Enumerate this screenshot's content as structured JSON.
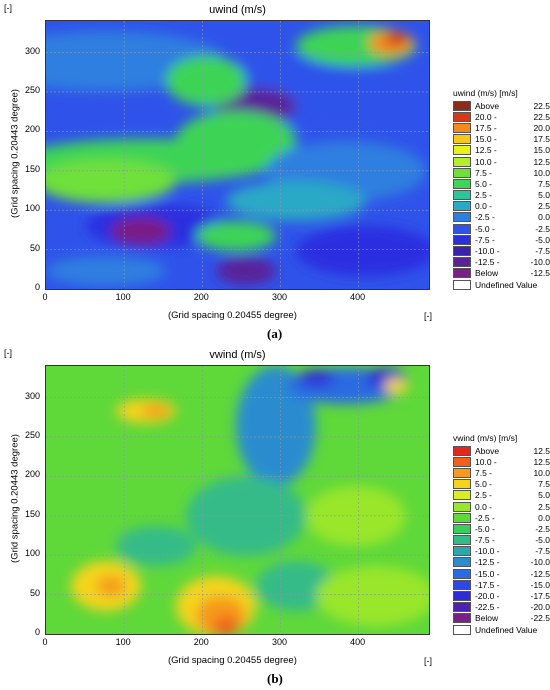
{
  "corner_label": "[-]",
  "panels": [
    {
      "id": "a",
      "title": "uwind (m/s)",
      "xlabel": "(Grid spacing 0.20455 degree)",
      "ylabel": "(Grid spacing 0.20443 degree)",
      "caption": "(a)",
      "xticks": [
        "0",
        "100",
        "200",
        "300",
        "400"
      ],
      "yticks": [
        "0",
        "50",
        "100",
        "150",
        "200",
        "250",
        "300"
      ],
      "legend": {
        "title": "uwind (m/s) [m/s]",
        "items": [
          {
            "left": "Above",
            "right": "22.5",
            "color": "#8b2b1a"
          },
          {
            "left": "20.0 -",
            "right": "22.5",
            "color": "#d33a1c"
          },
          {
            "left": "17.5 -",
            "right": "20.0",
            "color": "#f48a1c"
          },
          {
            "left": "15.0 -",
            "right": "17.5",
            "color": "#f5c81a"
          },
          {
            "left": "12.5 -",
            "right": "15.0",
            "color": "#e8f21a"
          },
          {
            "left": "10.0 -",
            "right": "12.5",
            "color": "#b5ee2a"
          },
          {
            "left": "7.5 -",
            "right": "10.0",
            "color": "#6fe03a"
          },
          {
            "left": "5.0 -",
            "right": "7.5",
            "color": "#3ed456"
          },
          {
            "left": "2.5 -",
            "right": "5.0",
            "color": "#2fc39a"
          },
          {
            "left": "0.0 -",
            "right": "2.5",
            "color": "#2aa9c6"
          },
          {
            "left": "-2.5 -",
            "right": "0.0",
            "color": "#2d7fe0"
          },
          {
            "left": "-5.0 -",
            "right": "-2.5",
            "color": "#2f53ea"
          },
          {
            "left": "-7.5 -",
            "right": "-5.0",
            "color": "#2a2fe0"
          },
          {
            "left": "-10.0 -",
            "right": "-7.5",
            "color": "#3a22b0"
          },
          {
            "left": "-12.5 -",
            "right": "-10.0",
            "color": "#5a2398"
          },
          {
            "left": "Below",
            "right": "-12.5",
            "color": "#7a1f86"
          },
          {
            "left": "Undefined Value",
            "right": "",
            "color": "#ffffff"
          }
        ]
      }
    },
    {
      "id": "b",
      "title": "vwind (m/s)",
      "xlabel": "(Grid spacing 0.20455 degree)",
      "ylabel": "(Grid spacing 0.20443 degree)",
      "caption": "(b)",
      "xticks": [
        "0",
        "100",
        "200",
        "300",
        "400"
      ],
      "yticks": [
        "0",
        "50",
        "100",
        "150",
        "200",
        "250",
        "300"
      ],
      "legend": {
        "title": "vwind (m/s) [m/s]",
        "items": [
          {
            "left": "Above",
            "right": "12.5",
            "color": "#e0281c"
          },
          {
            "left": "10.0 -",
            "right": "12.5",
            "color": "#f0601c"
          },
          {
            "left": "7.5 -",
            "right": "10.0",
            "color": "#f59a1c"
          },
          {
            "left": "5.0 -",
            "right": "7.5",
            "color": "#f5d41a"
          },
          {
            "left": "2.5 -",
            "right": "5.0",
            "color": "#d8ee1e"
          },
          {
            "left": "0.0 -",
            "right": "2.5",
            "color": "#9ae62a"
          },
          {
            "left": "-2.5 -",
            "right": "0.0",
            "color": "#5fd83a"
          },
          {
            "left": "-5.0 -",
            "right": "-2.5",
            "color": "#3ccc5a"
          },
          {
            "left": "-7.5 -",
            "right": "-5.0",
            "color": "#34bb88"
          },
          {
            "left": "-10.0 -",
            "right": "-7.5",
            "color": "#2fa6ad"
          },
          {
            "left": "-12.5 -",
            "right": "-10.0",
            "color": "#2b8ccf"
          },
          {
            "left": "-15.0 -",
            "right": "-12.5",
            "color": "#2b6ae2"
          },
          {
            "left": "-17.5 -",
            "right": "-15.0",
            "color": "#2d48e6"
          },
          {
            "left": "-20.0 -",
            "right": "-17.5",
            "color": "#2e2bd8"
          },
          {
            "left": "-22.5 -",
            "right": "-20.0",
            "color": "#4e22b0"
          },
          {
            "left": "Below",
            "right": "-22.5",
            "color": "#7a1f86"
          },
          {
            "left": "Undefined Value",
            "right": "",
            "color": "#ffffff"
          }
        ]
      }
    }
  ],
  "chart_data": [
    {
      "type": "heatmap",
      "title": "uwind (m/s)",
      "xlabel": "(Grid spacing 0.20455 degree)",
      "ylabel": "(Grid spacing 0.20443 degree)",
      "xlim": [
        0,
        490
      ],
      "ylim": [
        0,
        340
      ],
      "units": "m/s",
      "grid": true,
      "legend_position": "right"
    },
    {
      "type": "heatmap",
      "title": "vwind (m/s)",
      "xlabel": "(Grid spacing 0.20455 degree)",
      "ylabel": "(Grid spacing 0.20443 degree)",
      "xlim": [
        0,
        490
      ],
      "ylim": [
        0,
        340
      ],
      "units": "m/s",
      "grid": true,
      "legend_position": "right"
    }
  ]
}
